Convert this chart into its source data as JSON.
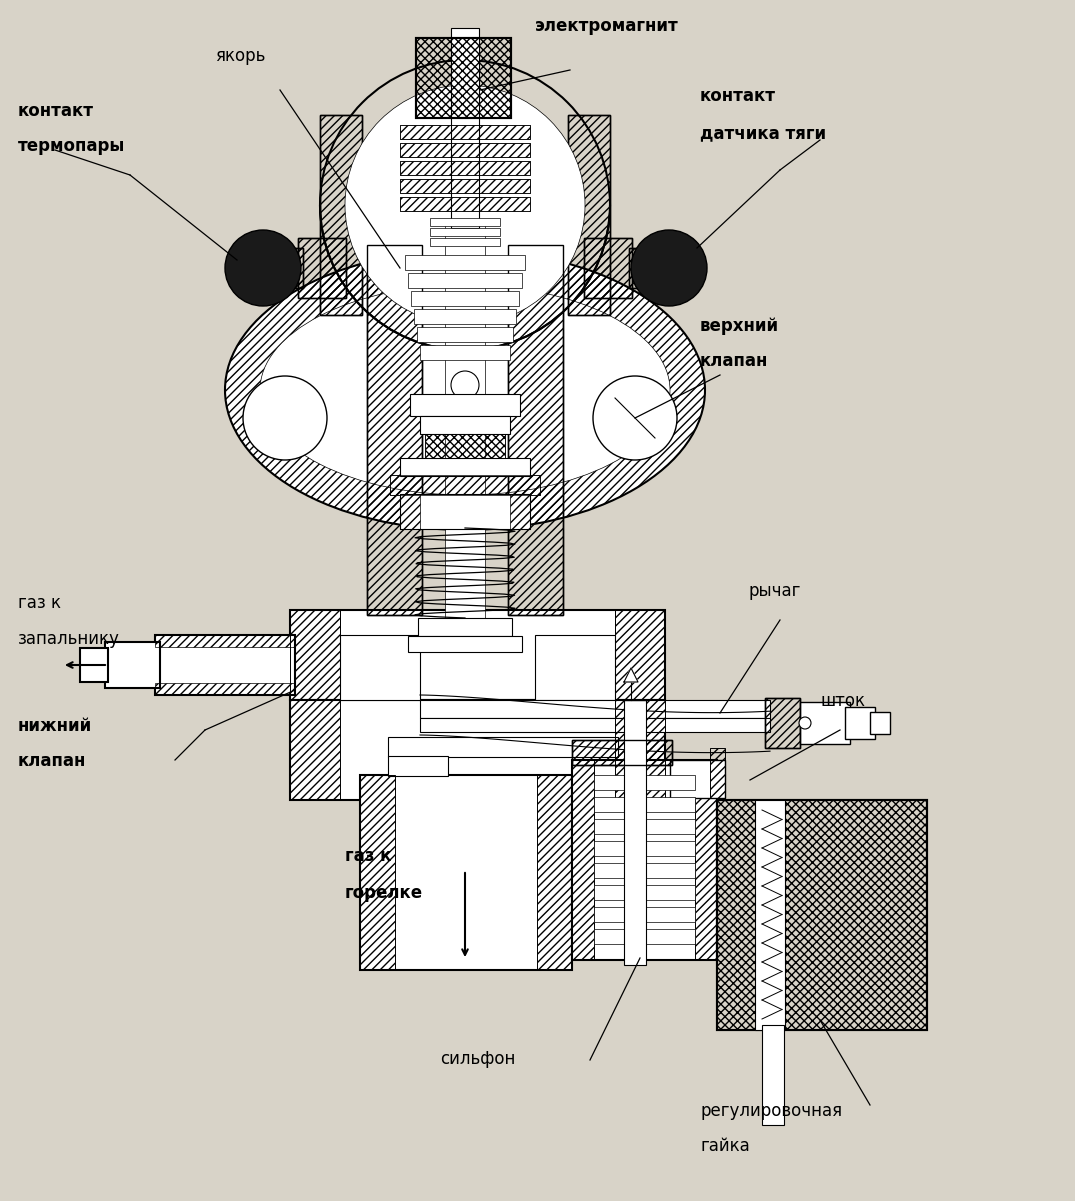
{
  "bg_color": "#d8d3c8",
  "lc": "black",
  "lw": 1.0,
  "lw2": 1.5,
  "figsize": [
    10.75,
    12.01
  ],
  "dpi": 100,
  "labels": {
    "yakor": "якорь",
    "elektromagnit": "электромагнит",
    "kontakt_termopary_1": "контакт",
    "kontakt_termopary_2": "термопары",
    "kontakt_datcha_1": "контакт",
    "kontakt_datcha_2": "датчика тяги",
    "verhniy_klapan_1": "верхний",
    "verhniy_klapan_2": "клапан",
    "rychag": "рычаг",
    "gaz_zapalnik_1": "газ к",
    "gaz_zapalnik_2": "запальнику",
    "nizhniy_klapan_1": "нижний",
    "nizhniy_klapan_2": "клапан",
    "gaz_gorelka_1": "газ к",
    "gaz_gorelka_2": "горелке",
    "sifon": "сильфон",
    "shtok": "шток",
    "regulirovka_1": "регулировочная",
    "regulirovka_2": "гайка"
  }
}
